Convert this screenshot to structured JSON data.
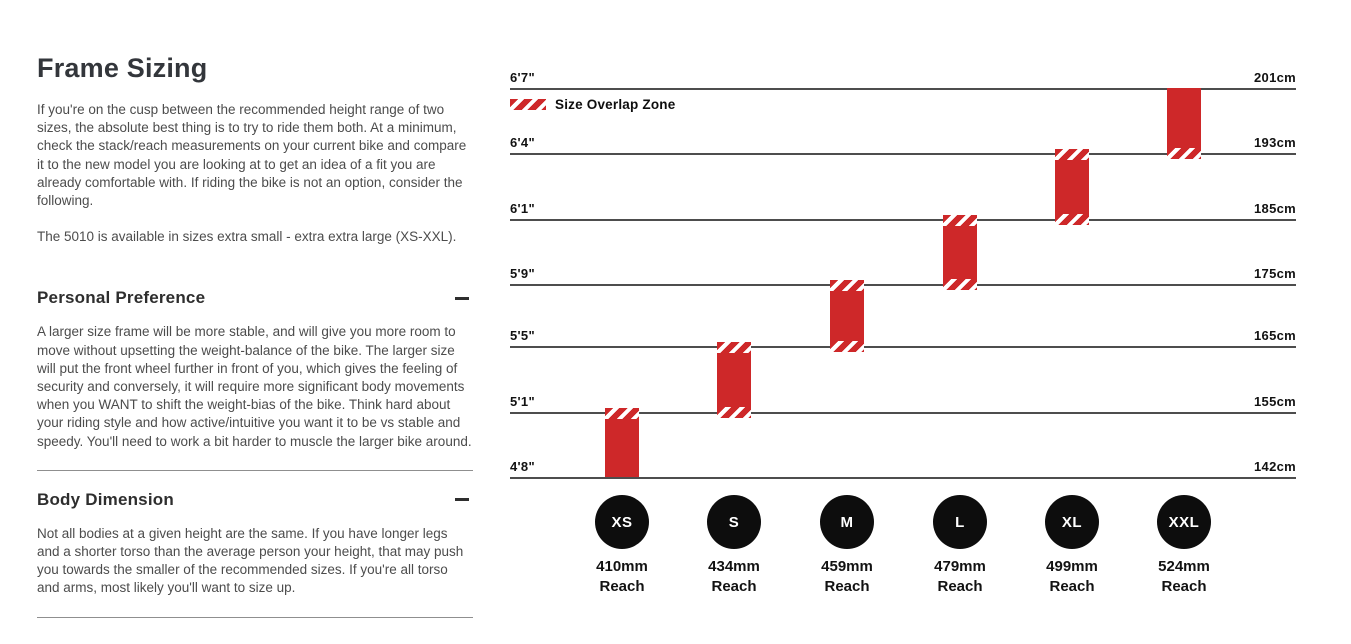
{
  "page": {
    "title": "Frame Sizing",
    "intro": "If you're on the cusp between the recommended height range of two sizes, the absolute best thing is to try to ride them both. At a minimum, check the stack/reach measurements on your current bike and compare it to the new model you are looking at to get an idea of a fit you are already comfortable with. If riding the bike is not an option, consider the following.",
    "availability": "The 5010 is available in sizes extra small - extra extra large (XS-XXL).",
    "sections": [
      {
        "title": "Personal Preference",
        "toggle_icon": "minus",
        "body": "A larger size frame will be more stable, and will give you more room to move without upsetting the weight-balance of the bike. The larger size will put the front wheel further in front of you, which gives the feeling of security and conversely, it will require more significant body movements when you WANT to shift the weight-bias of the bike. Think hard about your riding style and how active/intuitive you want it to be vs stable and speedy. You'll need to work a bit harder to muscle the larger bike around."
      },
      {
        "title": "Body Dimension",
        "toggle_icon": "minus",
        "body": "Not all bodies at a given height are the same. If you have longer legs and a shorter torso than the average person your height, that may push you towards the smaller of the recommended sizes. If you're all torso and arms, most likely you'll want to size up."
      }
    ]
  },
  "chart_data": {
    "type": "bar",
    "title": "",
    "legend": {
      "label": "Size Overlap Zone",
      "swatch": "red-diagonal-hatch"
    },
    "grid": true,
    "axis_rows": [
      {
        "ft": "6'7\"",
        "cm": "201cm"
      },
      {
        "ft": "6'4\"",
        "cm": "193cm"
      },
      {
        "ft": "6'1\"",
        "cm": "185cm"
      },
      {
        "ft": "5'9\"",
        "cm": "175cm"
      },
      {
        "ft": "5'5\"",
        "cm": "165cm"
      },
      {
        "ft": "5'1\"",
        "cm": "155cm"
      },
      {
        "ft": "4'8\"",
        "cm": "142cm"
      }
    ],
    "sizes": [
      {
        "label": "XS",
        "reach": "410mm",
        "reach_caption": "Reach",
        "height_range_ft": "4'8\"-5'1\"",
        "height_range_cm": "142-155cm",
        "overlap_top": true,
        "overlap_bottom": false
      },
      {
        "label": "S",
        "reach": "434mm",
        "reach_caption": "Reach",
        "height_range_ft": "5'1\"-5'5\"",
        "height_range_cm": "155-165cm",
        "overlap_top": true,
        "overlap_bottom": true
      },
      {
        "label": "M",
        "reach": "459mm",
        "reach_caption": "Reach",
        "height_range_ft": "5'5\"-5'9\"",
        "height_range_cm": "165-175cm",
        "overlap_top": true,
        "overlap_bottom": true
      },
      {
        "label": "L",
        "reach": "479mm",
        "reach_caption": "Reach",
        "height_range_ft": "5'9\"-6'1\"",
        "height_range_cm": "175-185cm",
        "overlap_top": true,
        "overlap_bottom": true
      },
      {
        "label": "XL",
        "reach": "499mm",
        "reach_caption": "Reach",
        "height_range_ft": "6'1\"-6'4\"",
        "height_range_cm": "185-193cm",
        "overlap_top": true,
        "overlap_bottom": true
      },
      {
        "label": "XXL",
        "reach": "524mm",
        "reach_caption": "Reach",
        "height_range_ft": "6'4\"-6'7\"",
        "height_range_cm": "193-201cm",
        "overlap_top": false,
        "overlap_bottom": true
      }
    ],
    "colors": {
      "bar": "#ce2829",
      "hatch_gap": "#ffffff",
      "gridline": "#4d4d4d",
      "circle": "#0d0d0d",
      "circle_text": "#ffffff"
    }
  }
}
